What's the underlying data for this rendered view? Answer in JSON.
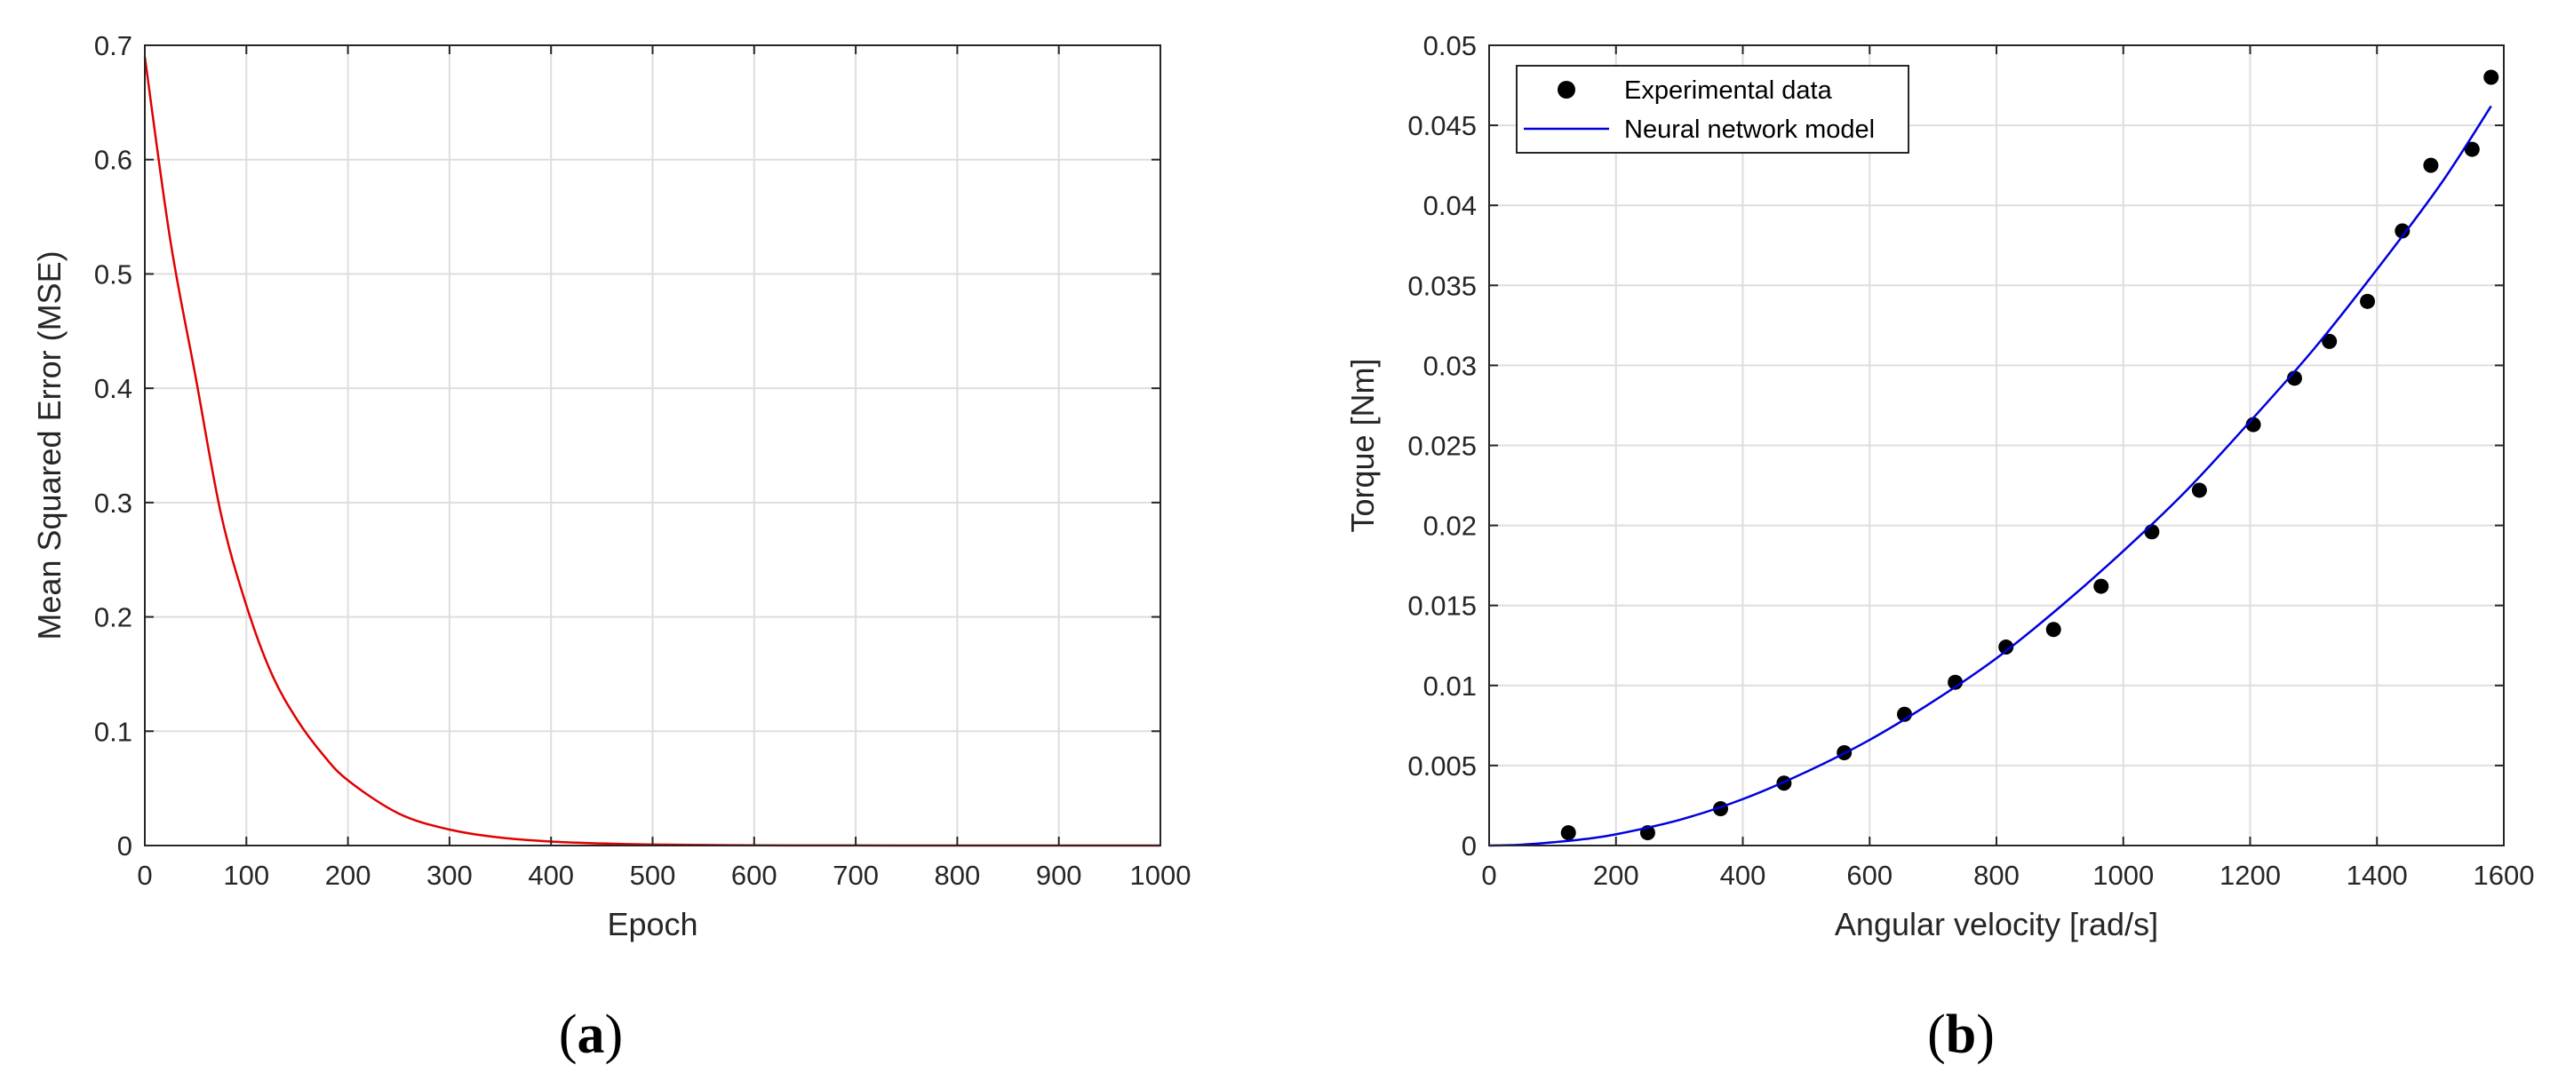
{
  "panels": [
    {
      "id": "a",
      "label": "(a)",
      "label_bold": "a"
    },
    {
      "id": "b",
      "label": "(b)",
      "label_bold": "b"
    }
  ],
  "chart_data": [
    {
      "type": "line",
      "panel": "(a)",
      "title": "",
      "xlabel": "Epoch",
      "ylabel": "Mean Squared Error (MSE)",
      "xlim": [
        0,
        1000
      ],
      "ylim": [
        0,
        0.7
      ],
      "xticks": [
        0,
        100,
        200,
        300,
        400,
        500,
        600,
        700,
        800,
        900,
        1000
      ],
      "yticks": [
        0,
        0.1,
        0.2,
        0.3,
        0.4,
        0.5,
        0.6,
        0.7
      ],
      "grid": true,
      "series": [
        {
          "color": "#e00000",
          "x": [
            0,
            25,
            50,
            75,
            100,
            125,
            150,
            175,
            200,
            250,
            300,
            350,
            400,
            450,
            500,
            600,
            700,
            800,
            900,
            1000
          ],
          "y": [
            0.69,
            0.53,
            0.41,
            0.29,
            0.21,
            0.15,
            0.11,
            0.08,
            0.057,
            0.028,
            0.014,
            0.007,
            0.0035,
            0.0018,
            0.0009,
            0.0002,
            5e-05,
            1e-05,
            0.0,
            0.0
          ]
        }
      ]
    },
    {
      "type": "scatter",
      "panel": "(b)",
      "title": "",
      "xlabel": "Angular velocity [rad/s]",
      "ylabel": "Torque [Nm]",
      "xlim": [
        0,
        1600
      ],
      "ylim": [
        0,
        0.05
      ],
      "xticks": [
        0,
        200,
        400,
        600,
        800,
        1000,
        1200,
        1400,
        1600
      ],
      "yticks": [
        0,
        0.005,
        0.01,
        0.015,
        0.02,
        0.025,
        0.03,
        0.035,
        0.04,
        0.045,
        0.05
      ],
      "grid": true,
      "legend": "top-left",
      "series": [
        {
          "name": "Experimental data",
          "kind": "markers",
          "color": "#000000",
          "x": [
            125,
            250,
            365,
            465,
            560,
            655,
            735,
            815,
            890,
            965,
            1045,
            1120,
            1205,
            1270,
            1325,
            1385,
            1440,
            1485,
            1550,
            1580
          ],
          "y": [
            0.0008,
            0.0008,
            0.0023,
            0.0039,
            0.0058,
            0.0082,
            0.0102,
            0.0124,
            0.0135,
            0.0162,
            0.0196,
            0.0222,
            0.0263,
            0.0292,
            0.0315,
            0.034,
            0.0384,
            0.0425,
            0.0435,
            0.048
          ]
        },
        {
          "name": "Neural network model",
          "kind": "line",
          "color": "#0000dd",
          "x": [
            0,
            50,
            100,
            150,
            200,
            300,
            400,
            500,
            600,
            700,
            800,
            900,
            1000,
            1100,
            1200,
            1300,
            1400,
            1500,
            1580
          ],
          "y": [
            0.0,
            5e-05,
            0.0002,
            0.0004,
            0.0007,
            0.0016,
            0.0029,
            0.0046,
            0.0066,
            0.009,
            0.0117,
            0.0149,
            0.0184,
            0.0222,
            0.0265,
            0.031,
            0.036,
            0.0413,
            0.0462
          ]
        }
      ]
    }
  ]
}
